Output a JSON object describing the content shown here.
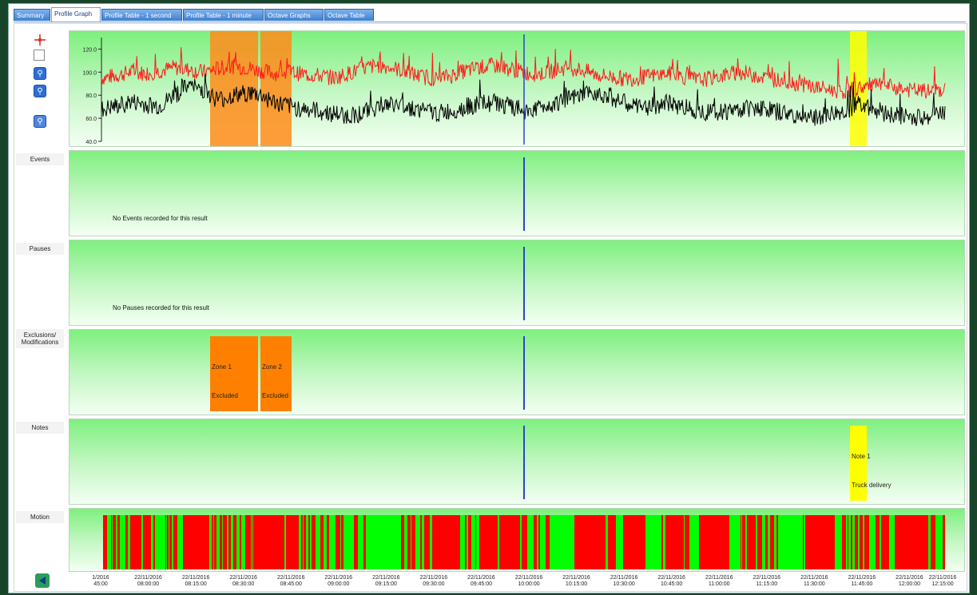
{
  "tabs": [
    {
      "label": "Summary",
      "active": false
    },
    {
      "label": "Profile Graph",
      "active": true
    },
    {
      "label": "Profile Table - 1 second",
      "active": false
    },
    {
      "label": "Profile Table - 1 minute",
      "active": false
    },
    {
      "label": "Octave Graphs",
      "active": false
    },
    {
      "label": "Octave Table",
      "active": false
    }
  ],
  "toolbar": {
    "cursor_icon": "crosshair-icon",
    "select_icon": "select-box-icon",
    "zoom_in_icon": "zoom-in-icon",
    "zoom_out_icon": "zoom-out-icon",
    "zoom_reset_icon": "zoom-reset-icon"
  },
  "chart_data": {
    "type": "line",
    "ylim": [
      40,
      130
    ],
    "y_ticks": [
      "120.0",
      "100.0",
      "80.0",
      "60.0",
      "40.0"
    ],
    "series": [
      {
        "color": "#ff1a1a",
        "values": [
          95,
          97,
          100,
          99,
          101,
          104,
          102,
          100,
          103,
          105,
          104,
          101,
          99,
          100,
          98,
          97,
          95,
          99,
          103,
          106,
          104,
          100,
          96,
          94,
          97,
          101,
          104,
          106,
          103,
          100,
          98,
          101,
          104,
          102,
          98,
          96,
          94,
          95,
          97,
          99,
          96,
          93,
          95,
          98,
          100,
          97,
          94,
          92,
          90,
          87,
          85,
          83,
          86,
          89,
          88,
          85,
          84,
          83,
          85
        ]
      },
      {
        "color": "#000000",
        "values": [
          67,
          70,
          74,
          72,
          70,
          80,
          88,
          85,
          76,
          79,
          82,
          80,
          73,
          70,
          68,
          66,
          64,
          62,
          65,
          70,
          72,
          70,
          67,
          64,
          66,
          70,
          72,
          74,
          70,
          66,
          69,
          73,
          76,
          79,
          83,
          79,
          73,
          69,
          71,
          73,
          70,
          67,
          65,
          66,
          68,
          70,
          67,
          64,
          62,
          60,
          63,
          65,
          73,
          69,
          64,
          62,
          60,
          62,
          65
        ]
      }
    ],
    "x_ticks": [
      [
        "1/2016",
        "45:00"
      ],
      [
        "22/11/2016",
        "08:00:00"
      ],
      [
        "22/11/2016",
        "08:15:00"
      ],
      [
        "22/11/2016",
        "08:30:00"
      ],
      [
        "22/11/2016",
        "08:45:00"
      ],
      [
        "22/11/2016",
        "09:00:00"
      ],
      [
        "22/11/2016",
        "09:15:00"
      ],
      [
        "22/11/2016",
        "09:30:00"
      ],
      [
        "22/11/2016",
        "09:45:00"
      ],
      [
        "22/11/2016",
        "10:00:00"
      ],
      [
        "22/11/2016",
        "10:15:00"
      ],
      [
        "22/11/2016",
        "10:30:00"
      ],
      [
        "22/11/2016",
        "10:45:00"
      ],
      [
        "22/11/2016",
        "11:00:00"
      ],
      [
        "22/11/2016",
        "11:15:00"
      ],
      [
        "22/11/2016",
        "11:30:00"
      ],
      [
        "22/11/2016",
        "11:45:00"
      ],
      [
        "22/11/2016",
        "12:00:00"
      ],
      [
        "22/11/2016",
        "12:15:00"
      ]
    ]
  },
  "panels": {
    "events": {
      "label": "Events",
      "message": "No Events recorded for this result"
    },
    "pauses": {
      "label": "Pauses",
      "message": "No Pauses recorded for this result"
    },
    "exclusions": {
      "label_line1": "Exclusions/",
      "label_line2": "Modifications",
      "zone1": {
        "name": "Zone 1",
        "status": "Excluded"
      },
      "zone2": {
        "name": "Zone 2",
        "status": "Excluded"
      }
    },
    "notes": {
      "label": "Notes",
      "note": {
        "name": "Note 1",
        "text": "Truck delivery"
      }
    },
    "motion": {
      "label": "Motion"
    }
  },
  "colors": {
    "exclusion": "#ff8000",
    "note": "#ffff00",
    "motion_on": "#ff0000",
    "motion_off": "#00ff00",
    "cursor_line": "#2b45c8"
  },
  "nav": {
    "back_icon": "green-left-arrow-icon"
  }
}
